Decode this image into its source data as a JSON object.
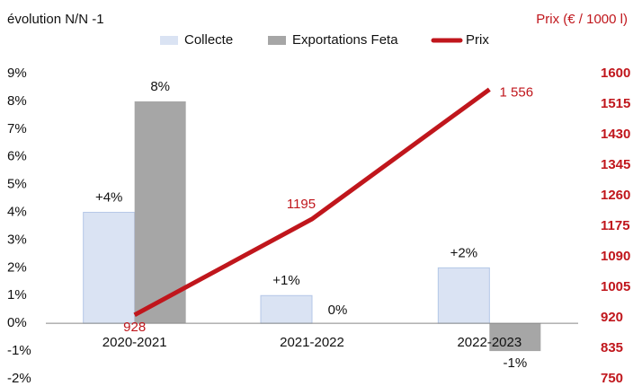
{
  "chart_data": {
    "type": "bar+line",
    "y_label": "évolution N/N -1",
    "y2_label": "Prix (€ / 1000 l)",
    "categories": [
      "2020-2021",
      "2021-2022",
      "2022-2023"
    ],
    "series": [
      {
        "name": "Collecte",
        "type": "bar",
        "color": "#dae3f3",
        "values": [
          4,
          1,
          2
        ],
        "value_labels": [
          "+4%",
          "+1%",
          "+2%"
        ]
      },
      {
        "name": "Exportations Feta",
        "type": "bar",
        "color": "#a6a6a6",
        "values": [
          8,
          0,
          -1
        ],
        "value_labels": [
          "8%",
          "0%",
          "-1%"
        ]
      },
      {
        "name": "Prix",
        "type": "line",
        "axis": "y2",
        "color": "#c0161c",
        "values": [
          928,
          1195,
          1556
        ],
        "value_labels": [
          "928",
          "1195",
          "1 556"
        ]
      }
    ],
    "ylim": [
      -2,
      9
    ],
    "yticks": [
      {
        "value": 9,
        "label": "9%"
      },
      {
        "value": 8,
        "label": "8%"
      },
      {
        "value": 7,
        "label": "7%"
      },
      {
        "value": 6,
        "label": "6%"
      },
      {
        "value": 5,
        "label": "5%"
      },
      {
        "value": 4,
        "label": "4%"
      },
      {
        "value": 3,
        "label": "3%"
      },
      {
        "value": 2,
        "label": "2%"
      },
      {
        "value": 1,
        "label": "1%"
      },
      {
        "value": 0,
        "label": "0%"
      },
      {
        "value": -1,
        "label": "-1%"
      },
      {
        "value": -2,
        "label": "-2%"
      }
    ],
    "y2lim": [
      750,
      1600
    ],
    "y2ticks": [
      1600,
      1515,
      1430,
      1345,
      1260,
      1175,
      1090,
      1005,
      920,
      835,
      750
    ],
    "grid": false
  }
}
